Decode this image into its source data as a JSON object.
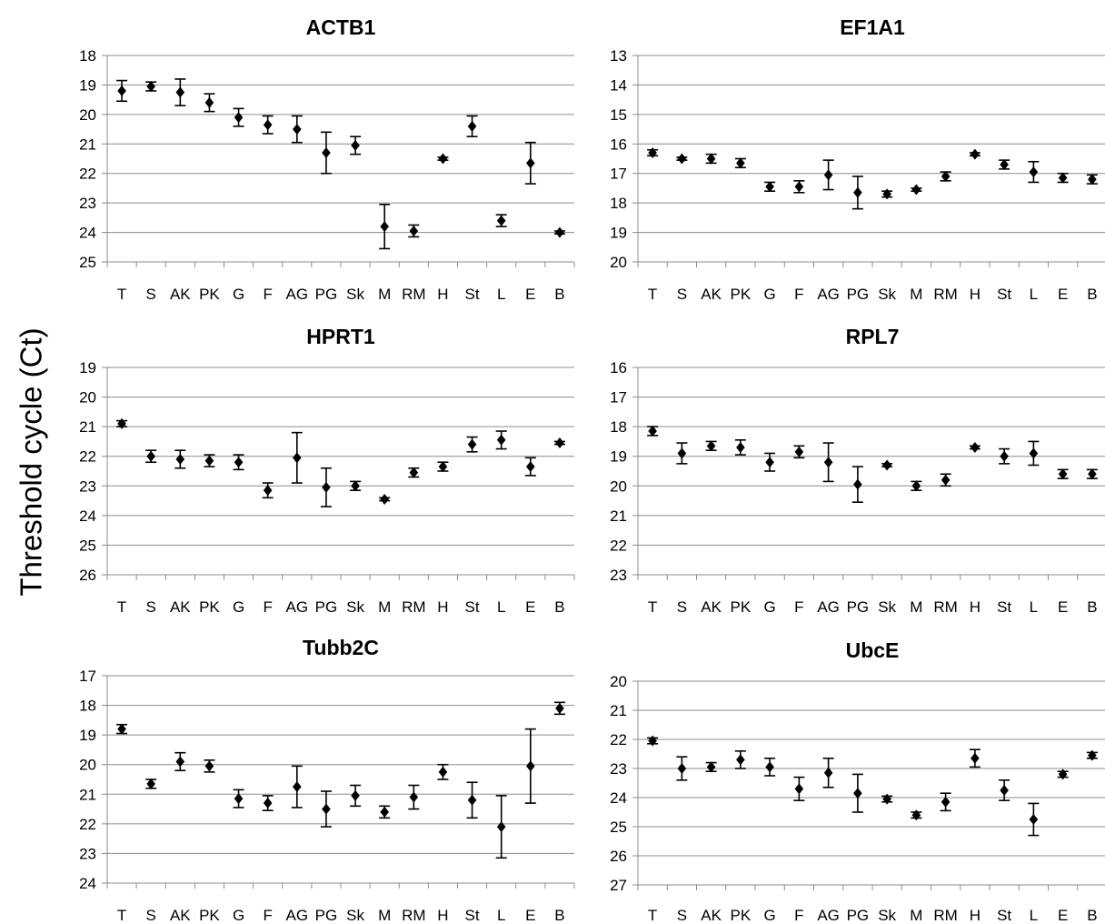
{
  "figure": {
    "ylabel": "Threshold cycle (Ct)"
  },
  "chart_data": [
    {
      "type": "scatter",
      "title": "ACTB1",
      "categories": [
        "T",
        "S",
        "AK",
        "PK",
        "G",
        "F",
        "AG",
        "PG",
        "Sk",
        "M",
        "RM",
        "H",
        "St",
        "L",
        "E",
        "B"
      ],
      "values": [
        19.2,
        19.05,
        19.25,
        19.6,
        20.1,
        20.35,
        20.5,
        21.3,
        21.05,
        23.8,
        23.95,
        21.5,
        20.4,
        23.6,
        21.65,
        24.0
      ],
      "errors": [
        0.35,
        0.15,
        0.45,
        0.3,
        0.3,
        0.3,
        0.45,
        0.7,
        0.3,
        0.75,
        0.2,
        0.05,
        0.35,
        0.2,
        0.7,
        0.05
      ],
      "ylim": [
        18,
        25
      ],
      "yticks": [
        18,
        19,
        20,
        21,
        22,
        23,
        24,
        25
      ],
      "y_inverted": true,
      "grid": "horizontal",
      "legend": "none"
    },
    {
      "type": "scatter",
      "title": "EF1A1",
      "categories": [
        "T",
        "S",
        "AK",
        "PK",
        "G",
        "F",
        "AG",
        "PG",
        "Sk",
        "M",
        "RM",
        "H",
        "St",
        "L",
        "E",
        "B"
      ],
      "values": [
        16.3,
        16.5,
        16.5,
        16.65,
        17.45,
        17.45,
        17.05,
        17.65,
        17.7,
        17.55,
        17.1,
        16.35,
        16.7,
        16.95,
        17.15,
        17.2
      ],
      "errors": [
        0.1,
        0.05,
        0.15,
        0.15,
        0.15,
        0.2,
        0.5,
        0.55,
        0.1,
        0.05,
        0.15,
        0.05,
        0.15,
        0.35,
        0.15,
        0.15
      ],
      "ylim": [
        13,
        20
      ],
      "yticks": [
        13,
        14,
        15,
        16,
        17,
        18,
        19,
        20
      ],
      "y_inverted": true,
      "grid": "horizontal",
      "legend": "none"
    },
    {
      "type": "scatter",
      "title": "HPRT1",
      "categories": [
        "T",
        "S",
        "AK",
        "PK",
        "G",
        "F",
        "AG",
        "PG",
        "Sk",
        "M",
        "RM",
        "H",
        "St",
        "L",
        "E",
        "B"
      ],
      "values": [
        20.9,
        22.0,
        22.1,
        22.15,
        22.2,
        23.15,
        22.05,
        23.05,
        23.0,
        23.45,
        22.55,
        22.35,
        21.6,
        21.45,
        22.35,
        21.55
      ],
      "errors": [
        0.1,
        0.2,
        0.3,
        0.2,
        0.25,
        0.25,
        0.85,
        0.65,
        0.15,
        0.05,
        0.15,
        0.15,
        0.25,
        0.3,
        0.3,
        0.05
      ],
      "ylim": [
        19,
        26
      ],
      "yticks": [
        19,
        20,
        21,
        22,
        23,
        24,
        25,
        26
      ],
      "y_inverted": true,
      "grid": "horizontal",
      "legend": "none"
    },
    {
      "type": "scatter",
      "title": "RPL7",
      "categories": [
        "T",
        "S",
        "AK",
        "PK",
        "G",
        "F",
        "AG",
        "PG",
        "Sk",
        "M",
        "RM",
        "H",
        "St",
        "L",
        "E",
        "B"
      ],
      "values": [
        18.15,
        18.9,
        18.65,
        18.7,
        19.2,
        18.85,
        19.2,
        19.95,
        19.3,
        20.0,
        19.8,
        18.7,
        19.0,
        18.9,
        19.6,
        19.6
      ],
      "errors": [
        0.15,
        0.35,
        0.15,
        0.25,
        0.3,
        0.2,
        0.65,
        0.6,
        0.05,
        0.15,
        0.2,
        0.05,
        0.25,
        0.4,
        0.15,
        0.15
      ],
      "ylim": [
        16,
        23
      ],
      "yticks": [
        16,
        17,
        18,
        19,
        20,
        21,
        22,
        23
      ],
      "y_inverted": true,
      "grid": "horizontal",
      "legend": "none"
    },
    {
      "type": "scatter",
      "title": "Tubb2C",
      "categories": [
        "T",
        "S",
        "AK",
        "PK",
        "G",
        "F",
        "AG",
        "PG",
        "Sk",
        "M",
        "RM",
        "H",
        "St",
        "L",
        "E",
        "B"
      ],
      "values": [
        18.8,
        20.65,
        19.9,
        20.05,
        21.15,
        21.3,
        20.75,
        21.5,
        21.05,
        21.6,
        21.1,
        20.25,
        21.2,
        22.1,
        20.05,
        18.1
      ],
      "errors": [
        0.15,
        0.15,
        0.3,
        0.2,
        0.3,
        0.25,
        0.7,
        0.6,
        0.35,
        0.2,
        0.4,
        0.25,
        0.6,
        1.05,
        1.25,
        0.2
      ],
      "ylim": [
        17,
        24
      ],
      "yticks": [
        17,
        18,
        19,
        20,
        21,
        22,
        23,
        24
      ],
      "y_inverted": true,
      "grid": "horizontal",
      "legend": "none"
    },
    {
      "type": "scatter",
      "title": "UbcE",
      "categories": [
        "T",
        "S",
        "AK",
        "PK",
        "G",
        "F",
        "AG",
        "PG",
        "Sk",
        "M",
        "RM",
        "H",
        "St",
        "L",
        "E",
        "B"
      ],
      "values": [
        22.05,
        23.0,
        22.95,
        22.7,
        22.95,
        23.7,
        23.15,
        23.85,
        24.05,
        24.6,
        24.15,
        22.65,
        23.75,
        24.75,
        23.2,
        22.55
      ],
      "errors": [
        0.1,
        0.4,
        0.15,
        0.3,
        0.3,
        0.4,
        0.5,
        0.65,
        0.1,
        0.1,
        0.3,
        0.3,
        0.35,
        0.55,
        0.1,
        0.1
      ],
      "ylim": [
        20,
        27
      ],
      "yticks": [
        20,
        21,
        22,
        23,
        24,
        25,
        26,
        27
      ],
      "y_inverted": true,
      "grid": "horizontal",
      "legend": "none"
    }
  ]
}
